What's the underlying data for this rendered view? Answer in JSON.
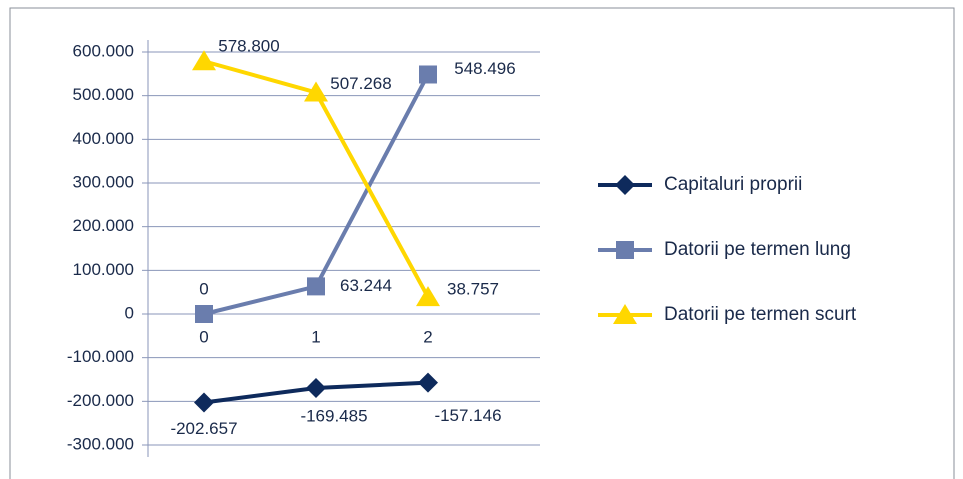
{
  "chart_data": {
    "type": "line",
    "categories": [
      "0",
      "1",
      "2"
    ],
    "series": [
      {
        "name": "Capitaluri proprii",
        "color": "#0e2a5c",
        "marker": "diamond",
        "values": [
          -202657,
          -169485,
          -157146
        ],
        "value_labels": [
          "-202.657",
          "-169.485",
          "-157.146"
        ]
      },
      {
        "name": "Datorii pe termen lung",
        "color": "#6a7dad",
        "marker": "square",
        "values": [
          0,
          63244,
          548496
        ],
        "value_labels": [
          "0",
          "63.244",
          "548.496"
        ]
      },
      {
        "name": "Datorii pe termen scurt",
        "color": "#ffd700",
        "marker": "triangle",
        "values": [
          578800,
          507268,
          38757
        ],
        "value_labels": [
          "578.800",
          "507.268",
          "38.757"
        ]
      }
    ],
    "ylim": [
      -300000,
      600000
    ],
    "yticks": [
      {
        "value": -300000,
        "label": "-300.000"
      },
      {
        "value": -200000,
        "label": "-200.000"
      },
      {
        "value": -100000,
        "label": "-100.000"
      },
      0,
      {
        "value": 100000,
        "label": "100.000"
      },
      {
        "value": 200000,
        "label": "200.000"
      },
      {
        "value": 300000,
        "label": "300.000"
      },
      {
        "value": 400000,
        "label": "400.000"
      },
      {
        "value": 500000,
        "label": "500.000"
      },
      {
        "value": 600000,
        "label": "600.000"
      }
    ],
    "grid": true,
    "legend": "right"
  }
}
